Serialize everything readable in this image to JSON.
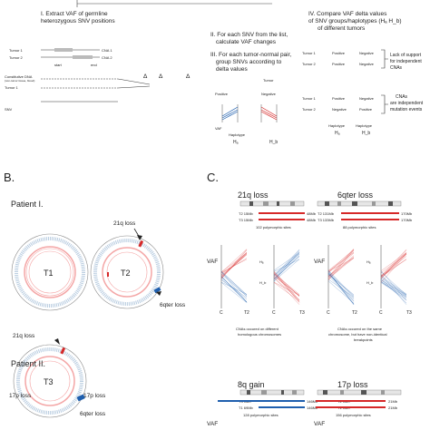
{
  "panelA": {
    "step1": [
      "I. Extract VAF of germline",
      "heterozygous SNV positions"
    ],
    "tumor1": "Tumor 1",
    "tumor2": "Tumor 2",
    "cna1": "CNA 1",
    "cna2": "CNA 2",
    "start": "start",
    "end": "end",
    "constitutive": "Constitutive DNA",
    "constitutive_sub": "(non-tumor tissue, blood)",
    "snv": "SNV",
    "step2": [
      "II. For each SNV from the list,",
      "calculate VAF changes"
    ],
    "step3": [
      "III. For each tumor-normal pair,",
      "group SNVs according to",
      "delta values"
    ],
    "tumor_x": "Tumor",
    "positive": "Positive",
    "negative": "Negative",
    "delta": "Δ",
    "vaf": "VAF",
    "haplotype": "Haplotype",
    "ha": "Hₐ",
    "hb": "H_b",
    "step4": [
      "IV. Compare VAF delta values",
      "of SNV groups/haplotypes (Hₐ H_b)",
      "of different tumors"
    ],
    "lack_support": [
      "Lack of support",
      "for independent",
      "CNAs"
    ],
    "independent": [
      "CNAs",
      "are independent",
      "mutation events"
    ],
    "haplotype_a": "Haplotype",
    "ha_label": "Hₐ",
    "hb_label": "H_b"
  },
  "panelB": {
    "label": "B.",
    "patient1": "Patient I.",
    "patient2": "Patient II.",
    "t1": "T1",
    "t2": "T2",
    "t3": "T3",
    "loss21q": "21q loss",
    "loss21q_b": "21q loss",
    "loss6q": "6qter loss",
    "loss6q_b": "6qter loss",
    "loss17p": "17p loss",
    "loss17p_b": "17p loss"
  },
  "panelC": {
    "label": "C.",
    "left": {
      "title": "21q loss",
      "t2": "T2 15Mb",
      "t3": "T3 15Mb",
      "end": "48Mb",
      "end2": "48Mb",
      "sites": "102 polymorphic sites",
      "vaf": "VAF",
      "ha": "Hₐ",
      "hb": "H_b",
      "c1": "C",
      "t2x": "T2",
      "c2": "C",
      "t3x": "T3",
      "caption": [
        "CNAs occured on different",
        "homologous chromosomes"
      ]
    },
    "right": {
      "title": "6qter loss",
      "t2": "T2 131Mb",
      "t3": "T3 133Mb",
      "end": "170Mb",
      "end2": "170Mb",
      "sites": "88 polymorphic sites",
      "vaf": "VAF",
      "ha": "Hₐ",
      "hb": "H_b",
      "c1": "C",
      "t2x": "T2",
      "c2": "C",
      "t3x": "T3",
      "caption": [
        "CNAs occured on the same",
        "chromosome, but have non-identical",
        "breakpoints"
      ]
    },
    "bottom_left": {
      "title": "8q gain",
      "t3": "T3 0Mb",
      "t1": "T1 69Mb",
      "end": "146Mb",
      "end2": "146Mb",
      "sites": "128 polymorphic sites",
      "vaf": "VAF"
    },
    "bottom_right": {
      "title": "17p loss",
      "t2": "T2 0Mb",
      "t1": "T1 0Mb",
      "end": "21Mb",
      "end2": "21Mb",
      "sites": "156 polymorphic sites",
      "vaf": "VAF"
    }
  },
  "colors": {
    "red": "#d62828",
    "blue": "#1f5fae",
    "pink": "#f4a6a6",
    "lightblue": "#9ec3e6",
    "grey": "#9a9a9a"
  }
}
